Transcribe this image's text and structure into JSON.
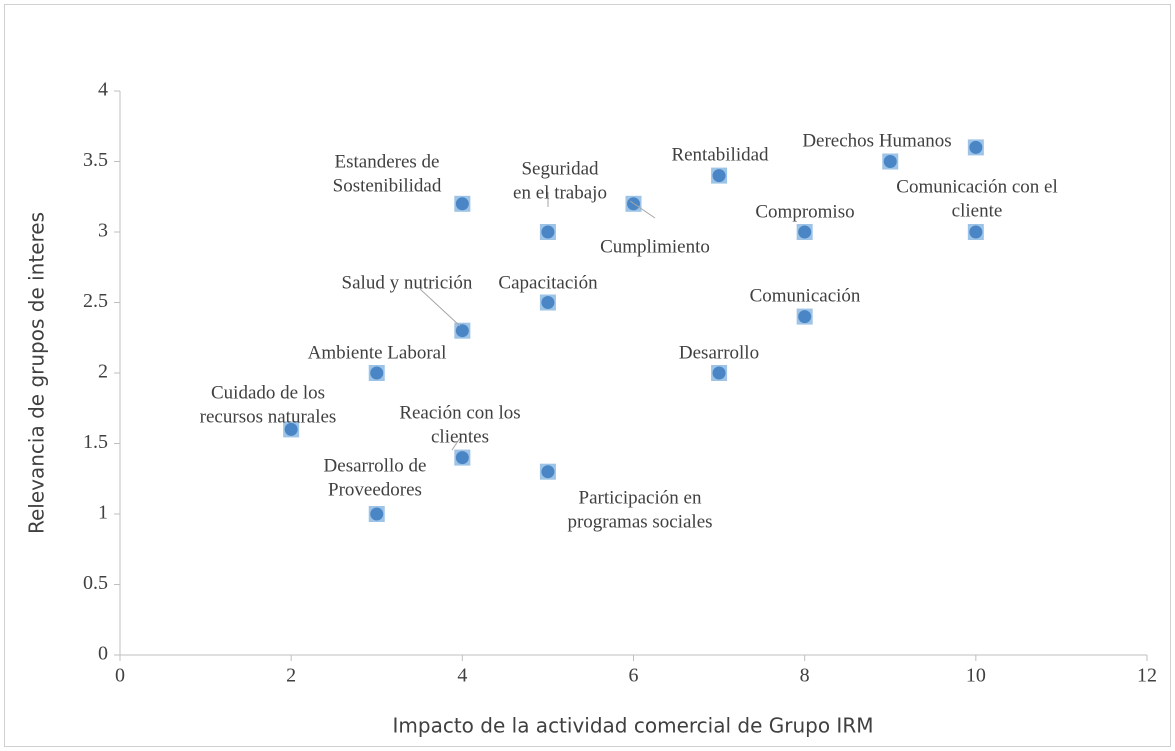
{
  "chart_data": {
    "type": "scatter",
    "x_label": "Impacto de la actividad comercial de Grupo IRM",
    "y_label": "Relevancia de grupos de interes",
    "x": [
      4,
      5,
      6,
      7,
      9,
      10,
      8,
      10,
      4,
      5,
      8,
      3,
      7,
      2,
      4,
      5,
      3
    ],
    "values": [
      3.2,
      3.0,
      3.2,
      3.4,
      3.5,
      3.6,
      3.0,
      3.0,
      2.3,
      2.5,
      2.4,
      2.0,
      2.0,
      1.6,
      1.4,
      1.3,
      1.0
    ],
    "labels": [
      [
        "Estanderes de",
        "Sostenibilidad"
      ],
      [
        "Seguridad",
        "en el trabajo"
      ],
      [
        "Cumplimiento"
      ],
      [
        "Rentabilidad"
      ],
      [
        "Derechos Humanos"
      ],
      null,
      [
        "Compromiso"
      ],
      [
        "Comunicación con el",
        "cliente"
      ],
      [
        "Salud y nutrición"
      ],
      [
        "Capacitación"
      ],
      [
        "Comunicación"
      ],
      [
        "Ambiente Laboral"
      ],
      [
        "Desarrollo"
      ],
      [
        "Cuidado de los",
        "recursos naturales"
      ],
      [
        "Reación con los",
        "clientes"
      ],
      [
        "Participación en",
        "programas sociales"
      ],
      [
        "Desarrollo de",
        "Proveedores"
      ]
    ],
    "color": "#4a86c5",
    "marker_edge": "#9dc3e6",
    "xlim": [
      0,
      12
    ],
    "xticks": [
      0,
      2,
      4,
      6,
      8,
      10,
      12
    ],
    "ylim": [
      0,
      4
    ],
    "yticks": [
      0,
      {
        "value": 0.5,
        "label": "0.5"
      },
      1,
      {
        "value": 1.5,
        "label": "1.5"
      },
      2,
      {
        "value": 2.5,
        "label": "2.5"
      },
      3,
      {
        "value": 3.5,
        "label": "3.5"
      },
      4
    ],
    "grid": false
  }
}
